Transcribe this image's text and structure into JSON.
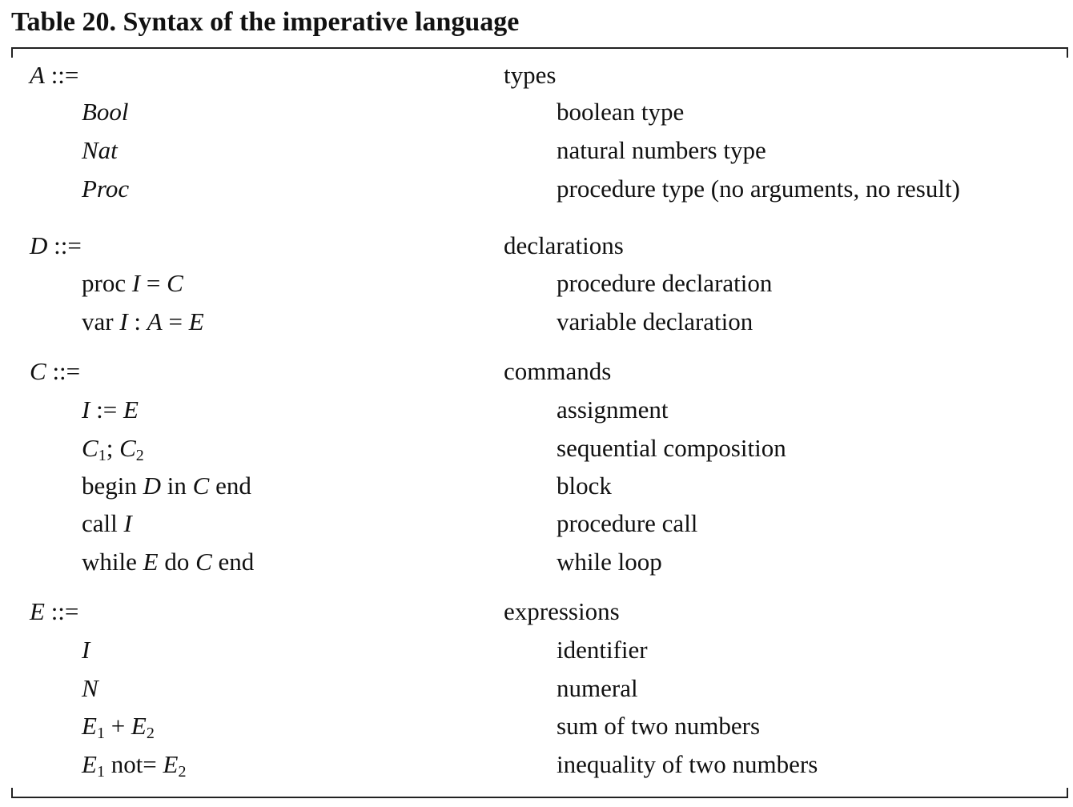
{
  "title": "Table 20. Syntax of the imperative language",
  "groups": [
    {
      "lhs": "A",
      "operator": "::=",
      "category": "types",
      "productions": [
        {
          "description": "boolean type"
        },
        {
          "description": "natural numbers type"
        },
        {
          "description": "procedure type (no arguments, no result)"
        }
      ]
    },
    {
      "lhs": "D",
      "operator": "::=",
      "category": "declarations",
      "productions": [
        {
          "description": "procedure declaration"
        },
        {
          "description": "variable declaration"
        }
      ]
    },
    {
      "lhs": "C",
      "operator": "::=",
      "category": "commands",
      "productions": [
        {
          "description": "assignment"
        },
        {
          "description": "sequential composition"
        },
        {
          "description": "block"
        },
        {
          "description": "procedure call"
        },
        {
          "description": "while loop"
        }
      ]
    },
    {
      "lhs": "E",
      "operator": "::=",
      "category": "expressions",
      "productions": [
        {
          "description": "identifier"
        },
        {
          "description": "numeral"
        },
        {
          "description": "sum of two numbers"
        },
        {
          "description": "inequality of two numbers"
        }
      ]
    }
  ]
}
